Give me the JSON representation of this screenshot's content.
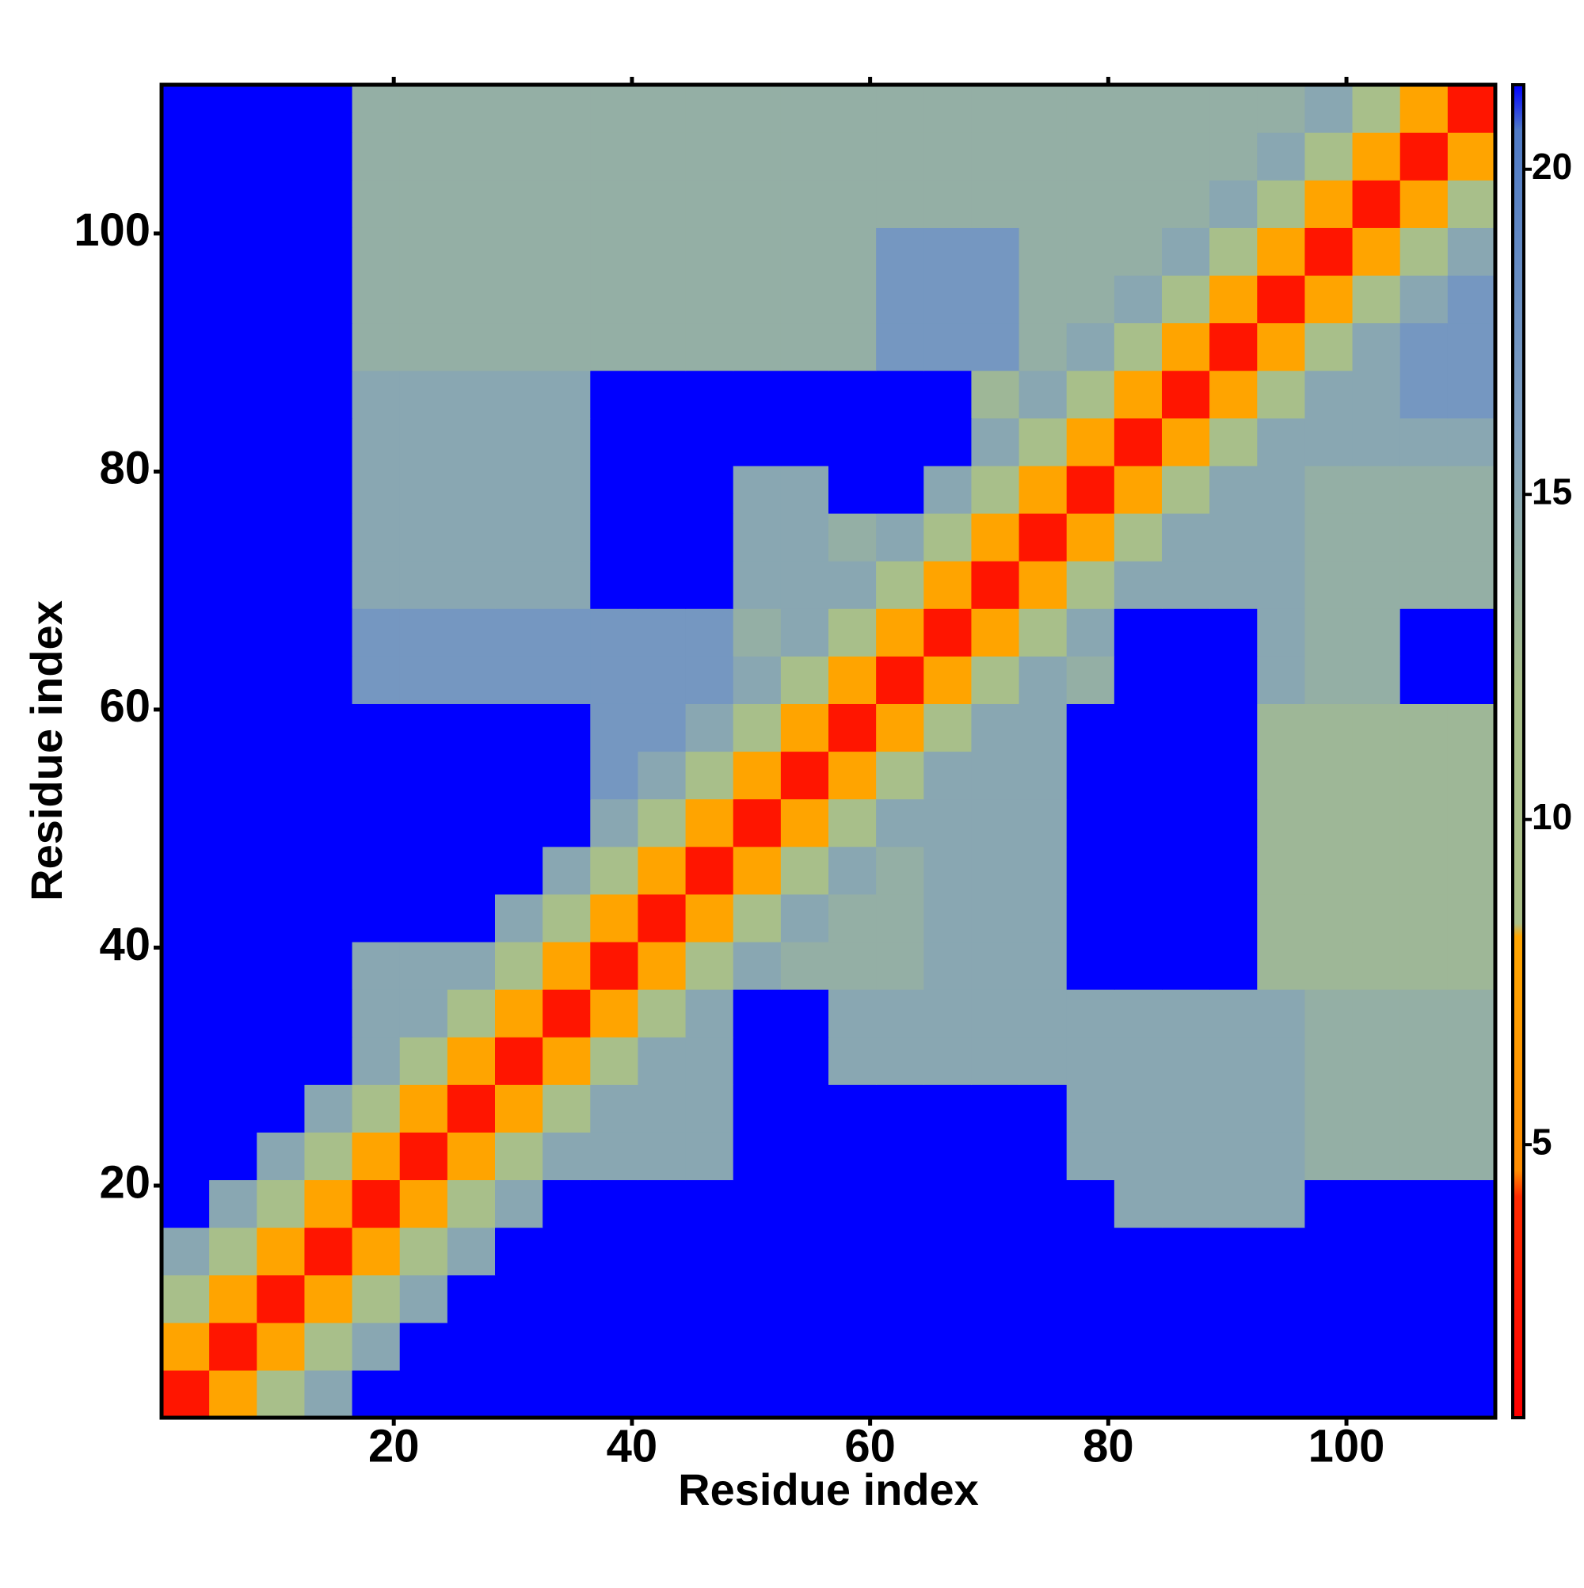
{
  "chart_data": {
    "type": "heatmap",
    "x_label": "Residue index",
    "y_label": "Residue index",
    "xlim": [
      0.5,
      112.5
    ],
    "ylim": [
      0.5,
      112.5
    ],
    "xticks": [
      20,
      40,
      60,
      80,
      100
    ],
    "yticks": [
      20,
      40,
      60,
      80,
      100
    ],
    "x": [
      2.5,
      6.5,
      10.5,
      14.5,
      18.5,
      22.5,
      26.5,
      30.5,
      34.5,
      38.5,
      42.5,
      46.5,
      50.5,
      54.5,
      58.5,
      62.5,
      66.5,
      70.5,
      74.5,
      78.5,
      82.5,
      86.5,
      90.5,
      94.5,
      98.5,
      102.5,
      106.5,
      110.5
    ],
    "y": [
      2.5,
      6.5,
      10.5,
      14.5,
      18.5,
      22.5,
      26.5,
      30.5,
      34.5,
      38.5,
      42.5,
      46.5,
      50.5,
      54.5,
      58.5,
      62.5,
      66.5,
      70.5,
      74.5,
      78.5,
      82.5,
      86.5,
      90.5,
      94.5,
      98.5,
      102.5,
      106.5,
      110.5
    ],
    "zlim": [
      0.8,
      21.3
    ],
    "zticks": [
      5,
      10,
      15,
      20
    ],
    "colorscale": [
      [
        0.8,
        "#ff0000"
      ],
      [
        4.2,
        "#ff2a00"
      ],
      [
        4.6,
        "#ff8c00"
      ],
      [
        8.2,
        "#ffa500"
      ],
      [
        8.4,
        "#aabf88"
      ],
      [
        12,
        "#a8bf8a"
      ],
      [
        16,
        "#7f9fbf"
      ],
      [
        20.6,
        "#4f7ac6"
      ],
      [
        21.3,
        "#0000ff"
      ]
    ],
    "z": [
      [
        2.5,
        8,
        12,
        15,
        21.3,
        21.3,
        21.3,
        21.3,
        21.3,
        21.3,
        21.3,
        21.3,
        21.3,
        21.3,
        21.3,
        21.3,
        21.3,
        21.3,
        21.3,
        21.3,
        21.3,
        21.3,
        21.3,
        21.3,
        21.3,
        21.3,
        21.3,
        21.3
      ],
      [
        8,
        2.5,
        8,
        12,
        15,
        21.3,
        21.3,
        21.3,
        21.3,
        21.3,
        21.3,
        21.3,
        21.3,
        21.3,
        21.3,
        21.3,
        21.3,
        21.3,
        21.3,
        21.3,
        21.3,
        21.3,
        21.3,
        21.3,
        21.3,
        21.3,
        21.3,
        21.3
      ],
      [
        12,
        8,
        2.5,
        8,
        12,
        15,
        21.3,
        21.3,
        21.3,
        21.3,
        21.3,
        21.3,
        21.3,
        21.3,
        21.3,
        21.3,
        21.3,
        21.3,
        21.3,
        21.3,
        21.3,
        21.3,
        21.3,
        21.3,
        21.3,
        21.3,
        21.3,
        21.3
      ],
      [
        15,
        12,
        8,
        2.5,
        8,
        12,
        15,
        21.3,
        21.3,
        21.3,
        21.3,
        21.3,
        21.3,
        21.3,
        21.3,
        21.3,
        21.3,
        21.3,
        21.3,
        21.3,
        21.3,
        21.3,
        21.3,
        21.3,
        21.3,
        21.3,
        21.3,
        21.3
      ],
      [
        21.3,
        15,
        12,
        8,
        2.5,
        8,
        12,
        15,
        21.3,
        21.3,
        21.3,
        21.3,
        21.3,
        21.3,
        21.3,
        21.3,
        21.3,
        21.3,
        21.3,
        21.3,
        15,
        15,
        15,
        15,
        21.3,
        21.3,
        21.3,
        21.3
      ],
      [
        21.3,
        21.3,
        15,
        12,
        8,
        2.5,
        8,
        12,
        15,
        15,
        15,
        15,
        21.3,
        21.3,
        21.3,
        21.3,
        21.3,
        21.3,
        21.3,
        15,
        15,
        15,
        15,
        15,
        14,
        14,
        14,
        14
      ],
      [
        21.3,
        21.3,
        21.3,
        15,
        12,
        8,
        2.5,
        8,
        12,
        15,
        15,
        15,
        21.3,
        21.3,
        21.3,
        21.3,
        21.3,
        21.3,
        21.3,
        15,
        15,
        15,
        15,
        15,
        14,
        14,
        14,
        14
      ],
      [
        21.3,
        21.3,
        21.3,
        21.3,
        15,
        12,
        8,
        2.5,
        8,
        12,
        15,
        15,
        21.3,
        21.3,
        15,
        15,
        15,
        15,
        15,
        15,
        15,
        15,
        15,
        15,
        14,
        14,
        14,
        14
      ],
      [
        21.3,
        21.3,
        21.3,
        21.3,
        15,
        15,
        12,
        8,
        2.5,
        8,
        12,
        15,
        21.3,
        21.3,
        15,
        15,
        15,
        15,
        15,
        15,
        15,
        15,
        15,
        15,
        14,
        14,
        14,
        14
      ],
      [
        21.3,
        21.3,
        21.3,
        21.3,
        15,
        15,
        15,
        12,
        8,
        2.5,
        8,
        12,
        15,
        14,
        14,
        14,
        15,
        15,
        15,
        21.3,
        21.3,
        21.3,
        21.3,
        13,
        13,
        13,
        13,
        13
      ],
      [
        21.3,
        21.3,
        21.3,
        21.3,
        21.3,
        21.3,
        21.3,
        15,
        12,
        8,
        2.5,
        8,
        12,
        15,
        14,
        14,
        15,
        15,
        15,
        21.3,
        21.3,
        21.3,
        21.3,
        13,
        13,
        13,
        13,
        13
      ],
      [
        21.3,
        21.3,
        21.3,
        21.3,
        21.3,
        21.3,
        21.3,
        21.3,
        15,
        12,
        8,
        2.5,
        8,
        12,
        15,
        14,
        15,
        15,
        15,
        21.3,
        21.3,
        21.3,
        21.3,
        13,
        13,
        13,
        13,
        13
      ],
      [
        21.3,
        21.3,
        21.3,
        21.3,
        21.3,
        21.3,
        21.3,
        21.3,
        21.3,
        15,
        12,
        8,
        2.5,
        8,
        12,
        15,
        15,
        15,
        15,
        21.3,
        21.3,
        21.3,
        21.3,
        13,
        13,
        13,
        13,
        13
      ],
      [
        21.3,
        21.3,
        21.3,
        21.3,
        21.3,
        21.3,
        21.3,
        21.3,
        21.3,
        17,
        15,
        12,
        8,
        2.5,
        8,
        12,
        15,
        15,
        15,
        21.3,
        21.3,
        21.3,
        21.3,
        13,
        13,
        13,
        13,
        13
      ],
      [
        21.3,
        21.3,
        21.3,
        21.3,
        21.3,
        21.3,
        21.3,
        21.3,
        21.3,
        17,
        17,
        15,
        12,
        8,
        2.5,
        8,
        12,
        15,
        15,
        21.3,
        21.3,
        21.3,
        21.3,
        13,
        13,
        13,
        13,
        13
      ],
      [
        21.3,
        21.3,
        21.3,
        21.3,
        17,
        17,
        17,
        17,
        17,
        17,
        17,
        17,
        15,
        12,
        8,
        2.5,
        8,
        12,
        15,
        14,
        21.3,
        21.3,
        21.3,
        15,
        14,
        14,
        21.3,
        21.3
      ],
      [
        21.3,
        21.3,
        21.3,
        21.3,
        17,
        17,
        17,
        17,
        17,
        17,
        17,
        17,
        14,
        15,
        12,
        8,
        2.5,
        8,
        12,
        15,
        21.3,
        21.3,
        21.3,
        15,
        14,
        14,
        21.3,
        21.3
      ],
      [
        21.3,
        21.3,
        21.3,
        21.3,
        15,
        15,
        15,
        15,
        15,
        21.3,
        21.3,
        21.3,
        15,
        15,
        15,
        12,
        8,
        2.5,
        8,
        12,
        15,
        15,
        15,
        15,
        14,
        14,
        14,
        14
      ],
      [
        21.3,
        21.3,
        21.3,
        21.3,
        15,
        15,
        15,
        15,
        15,
        21.3,
        21.3,
        21.3,
        15,
        15,
        14,
        15,
        12,
        8,
        2.5,
        8,
        12,
        15,
        15,
        15,
        14,
        14,
        14,
        14
      ],
      [
        21.3,
        21.3,
        21.3,
        21.3,
        15,
        15,
        15,
        15,
        15,
        21.3,
        21.3,
        21.3,
        15,
        15,
        21.3,
        21.3,
        15,
        12,
        8,
        2.5,
        8,
        12,
        15,
        15,
        14,
        14,
        14,
        14
      ],
      [
        21.3,
        21.3,
        21.3,
        21.3,
        15,
        15,
        15,
        15,
        15,
        21.3,
        21.3,
        21.3,
        21.3,
        21.3,
        21.3,
        21.3,
        21.3,
        15,
        12,
        8,
        2.5,
        8,
        12,
        15,
        15,
        15,
        15,
        15
      ],
      [
        21.3,
        21.3,
        21.3,
        21.3,
        15,
        15,
        15,
        15,
        15,
        21.3,
        21.3,
        21.3,
        21.3,
        21.3,
        21.3,
        21.3,
        21.3,
        13,
        15,
        12,
        8,
        2.5,
        8,
        12,
        15,
        15,
        17,
        17
      ],
      [
        21.3,
        21.3,
        21.3,
        21.3,
        14,
        14,
        14,
        14,
        14,
        14,
        14,
        14,
        14,
        14,
        14,
        17,
        17,
        17,
        14,
        15,
        12,
        8,
        2.5,
        8,
        12,
        15,
        17,
        17
      ],
      [
        21.3,
        21.3,
        21.3,
        21.3,
        14,
        14,
        14,
        14,
        14,
        14,
        14,
        14,
        14,
        14,
        14,
        17,
        17,
        17,
        14,
        14,
        15,
        12,
        8,
        2.5,
        8,
        12,
        15,
        17
      ],
      [
        21.3,
        21.3,
        21.3,
        21.3,
        14,
        14,
        14,
        14,
        14,
        14,
        14,
        14,
        14,
        14,
        14,
        17,
        17,
        17,
        14,
        14,
        14,
        15,
        12,
        8,
        2.5,
        8,
        12,
        15
      ],
      [
        21.3,
        21.3,
        21.3,
        21.3,
        14,
        14,
        14,
        14,
        14,
        14,
        14,
        14,
        14,
        14,
        14,
        14,
        14,
        14,
        14,
        14,
        14,
        14,
        15,
        12,
        8,
        2.5,
        8,
        12
      ],
      [
        21.3,
        21.3,
        21.3,
        21.3,
        14,
        14,
        14,
        14,
        14,
        14,
        14,
        14,
        14,
        14,
        14,
        14,
        14,
        14,
        14,
        14,
        14,
        14,
        14,
        15,
        12,
        8,
        2.5,
        8
      ],
      [
        21.3,
        21.3,
        21.3,
        21.3,
        14,
        14,
        14,
        14,
        14,
        14,
        14,
        14,
        14,
        14,
        14,
        14,
        14,
        14,
        14,
        14,
        14,
        14,
        14,
        14,
        15,
        12,
        8,
        2.5
      ]
    ]
  }
}
